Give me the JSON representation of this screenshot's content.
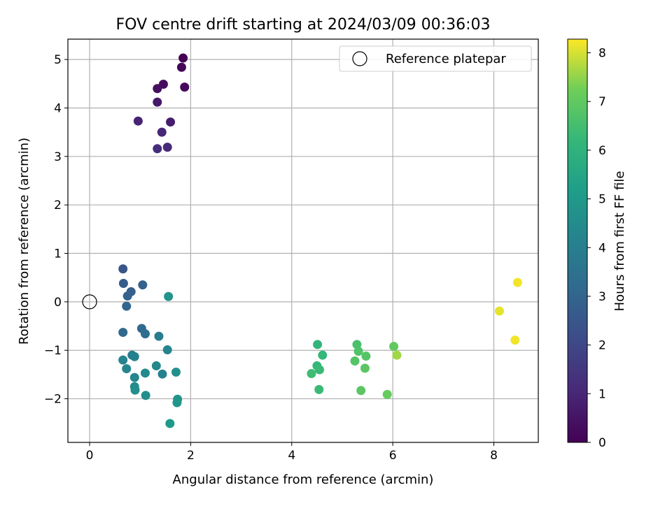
{
  "chart_data": {
    "type": "scatter",
    "title": "FOV centre drift starting at 2024/03/09 00:36:03",
    "xlabel": "Angular distance from reference (arcmin)",
    "ylabel": "Rotation from reference (arcmin)",
    "xlim": [
      -0.43,
      8.88
    ],
    "ylim": [
      -2.9,
      5.42
    ],
    "xticks": [
      0,
      2,
      4,
      6,
      8
    ],
    "yticks": [
      -2,
      -1,
      0,
      1,
      2,
      3,
      4,
      5
    ],
    "grid": true,
    "legend": {
      "position": "top-right",
      "entries": [
        "Reference platepar"
      ]
    },
    "reference_point": {
      "x": 0,
      "y": 0
    },
    "colorbar": {
      "label": "Hours from first FF file",
      "range": [
        0,
        8.28
      ],
      "ticks": [
        0,
        1,
        2,
        3,
        4,
        5,
        6,
        7,
        8
      ],
      "colormap": "viridis"
    },
    "points": [
      {
        "x": 1.85,
        "y": 5.03,
        "h": 0.0
      },
      {
        "x": 1.82,
        "y": 4.84,
        "h": 0.1
      },
      {
        "x": 1.88,
        "y": 4.43,
        "h": 0.2
      },
      {
        "x": 1.46,
        "y": 4.49,
        "h": 0.3
      },
      {
        "x": 1.34,
        "y": 4.4,
        "h": 0.4
      },
      {
        "x": 1.34,
        "y": 4.12,
        "h": 0.6
      },
      {
        "x": 1.6,
        "y": 3.71,
        "h": 0.75
      },
      {
        "x": 0.96,
        "y": 3.73,
        "h": 0.9
      },
      {
        "x": 1.43,
        "y": 3.5,
        "h": 1.0
      },
      {
        "x": 1.54,
        "y": 3.19,
        "h": 1.1
      },
      {
        "x": 1.34,
        "y": 3.16,
        "h": 1.2
      },
      {
        "x": 0.66,
        "y": 0.68,
        "h": 2.5
      },
      {
        "x": 0.67,
        "y": 0.38,
        "h": 2.7
      },
      {
        "x": 1.05,
        "y": 0.35,
        "h": 2.9
      },
      {
        "x": 0.82,
        "y": 0.21,
        "h": 2.8
      },
      {
        "x": 0.75,
        "y": 0.12,
        "h": 2.9
      },
      {
        "x": 0.73,
        "y": -0.09,
        "h": 3.0
      },
      {
        "x": 1.56,
        "y": 0.11,
        "h": 4.8
      },
      {
        "x": 0.66,
        "y": -0.63,
        "h": 3.1
      },
      {
        "x": 1.03,
        "y": -0.55,
        "h": 3.2
      },
      {
        "x": 1.1,
        "y": -0.66,
        "h": 3.3
      },
      {
        "x": 1.37,
        "y": -0.71,
        "h": 3.9
      },
      {
        "x": 1.54,
        "y": -0.99,
        "h": 4.2
      },
      {
        "x": 0.84,
        "y": -1.1,
        "h": 4.0
      },
      {
        "x": 0.89,
        "y": -1.13,
        "h": 4.1
      },
      {
        "x": 0.66,
        "y": -1.2,
        "h": 4.2
      },
      {
        "x": 1.32,
        "y": -1.32,
        "h": 4.3
      },
      {
        "x": 0.73,
        "y": -1.38,
        "h": 4.3
      },
      {
        "x": 1.1,
        "y": -1.47,
        "h": 4.4
      },
      {
        "x": 1.44,
        "y": -1.49,
        "h": 4.1
      },
      {
        "x": 1.71,
        "y": -1.45,
        "h": 4.7
      },
      {
        "x": 0.89,
        "y": -1.56,
        "h": 4.3
      },
      {
        "x": 0.89,
        "y": -1.75,
        "h": 4.5
      },
      {
        "x": 0.9,
        "y": -1.82,
        "h": 4.6
      },
      {
        "x": 1.11,
        "y": -1.93,
        "h": 4.6
      },
      {
        "x": 1.74,
        "y": -2.01,
        "h": 4.8
      },
      {
        "x": 1.73,
        "y": -2.08,
        "h": 4.9
      },
      {
        "x": 1.59,
        "y": -2.51,
        "h": 5.0
      },
      {
        "x": 4.51,
        "y": -0.88,
        "h": 6.1
      },
      {
        "x": 4.61,
        "y": -1.1,
        "h": 6.2
      },
      {
        "x": 4.5,
        "y": -1.32,
        "h": 6.2
      },
      {
        "x": 4.55,
        "y": -1.4,
        "h": 6.3
      },
      {
        "x": 4.39,
        "y": -1.48,
        "h": 6.4
      },
      {
        "x": 4.54,
        "y": -1.81,
        "h": 6.3
      },
      {
        "x": 5.29,
        "y": -0.88,
        "h": 6.6
      },
      {
        "x": 5.32,
        "y": -1.02,
        "h": 6.7
      },
      {
        "x": 5.47,
        "y": -1.12,
        "h": 6.8
      },
      {
        "x": 5.25,
        "y": -1.22,
        "h": 6.8
      },
      {
        "x": 5.45,
        "y": -1.37,
        "h": 6.9
      },
      {
        "x": 5.37,
        "y": -1.83,
        "h": 6.9
      },
      {
        "x": 6.02,
        "y": -0.92,
        "h": 7.0
      },
      {
        "x": 6.08,
        "y": -1.1,
        "h": 7.6
      },
      {
        "x": 5.89,
        "y": -1.91,
        "h": 7.1
      },
      {
        "x": 8.47,
        "y": 0.4,
        "h": 8.2
      },
      {
        "x": 8.11,
        "y": -0.19,
        "h": 8.1
      },
      {
        "x": 8.42,
        "y": -0.79,
        "h": 8.2
      }
    ]
  }
}
